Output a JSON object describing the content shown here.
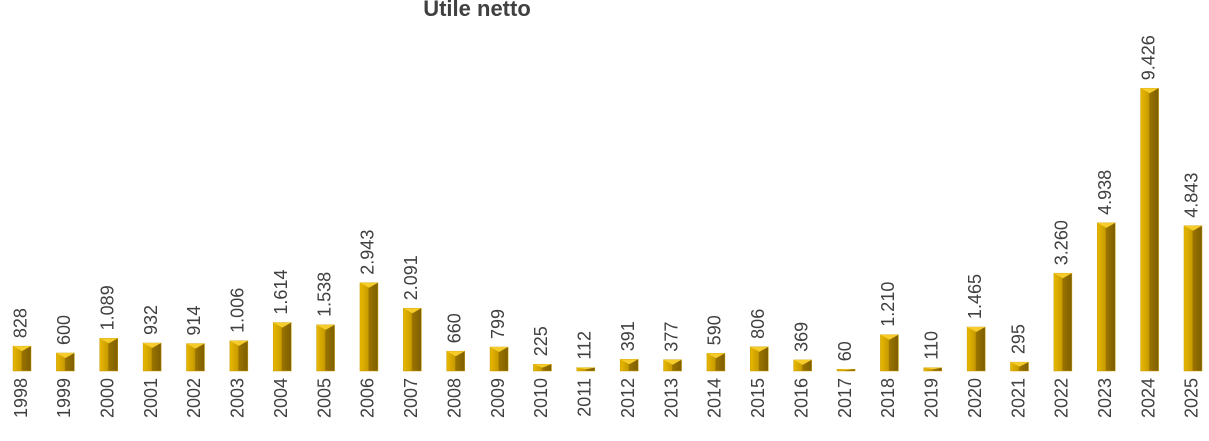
{
  "chart_data": {
    "type": "bar",
    "title": "Utile netto",
    "categories": [
      "1998",
      "1999",
      "2000",
      "2001",
      "2002",
      "2003",
      "2004",
      "2005",
      "2006",
      "2007",
      "2008",
      "2009",
      "2010",
      "2011",
      "2012",
      "2013",
      "2014",
      "2015",
      "2016",
      "2017",
      "2018",
      "2019",
      "2020",
      "2021",
      "2022",
      "2023",
      "2024",
      "2025"
    ],
    "values": [
      828,
      600,
      1089,
      932,
      914,
      1006,
      1614,
      1538,
      2943,
      2091,
      660,
      799,
      225,
      112,
      391,
      377,
      590,
      806,
      369,
      60,
      1210,
      110,
      1465,
      295,
      3260,
      4938,
      9426,
      4843
    ],
    "value_labels": [
      "828",
      "600",
      "1.089",
      "932",
      "914",
      "1.006",
      "1.614",
      "1.538",
      "2.943",
      "2.091",
      "660",
      "799",
      "225",
      "112",
      "391",
      "377",
      "590",
      "806",
      "369",
      "60",
      "1.210",
      "110",
      "1.465",
      "295",
      "3.260",
      "4.938",
      "9.426",
      "4.843"
    ],
    "color": "#c89b00"
  }
}
